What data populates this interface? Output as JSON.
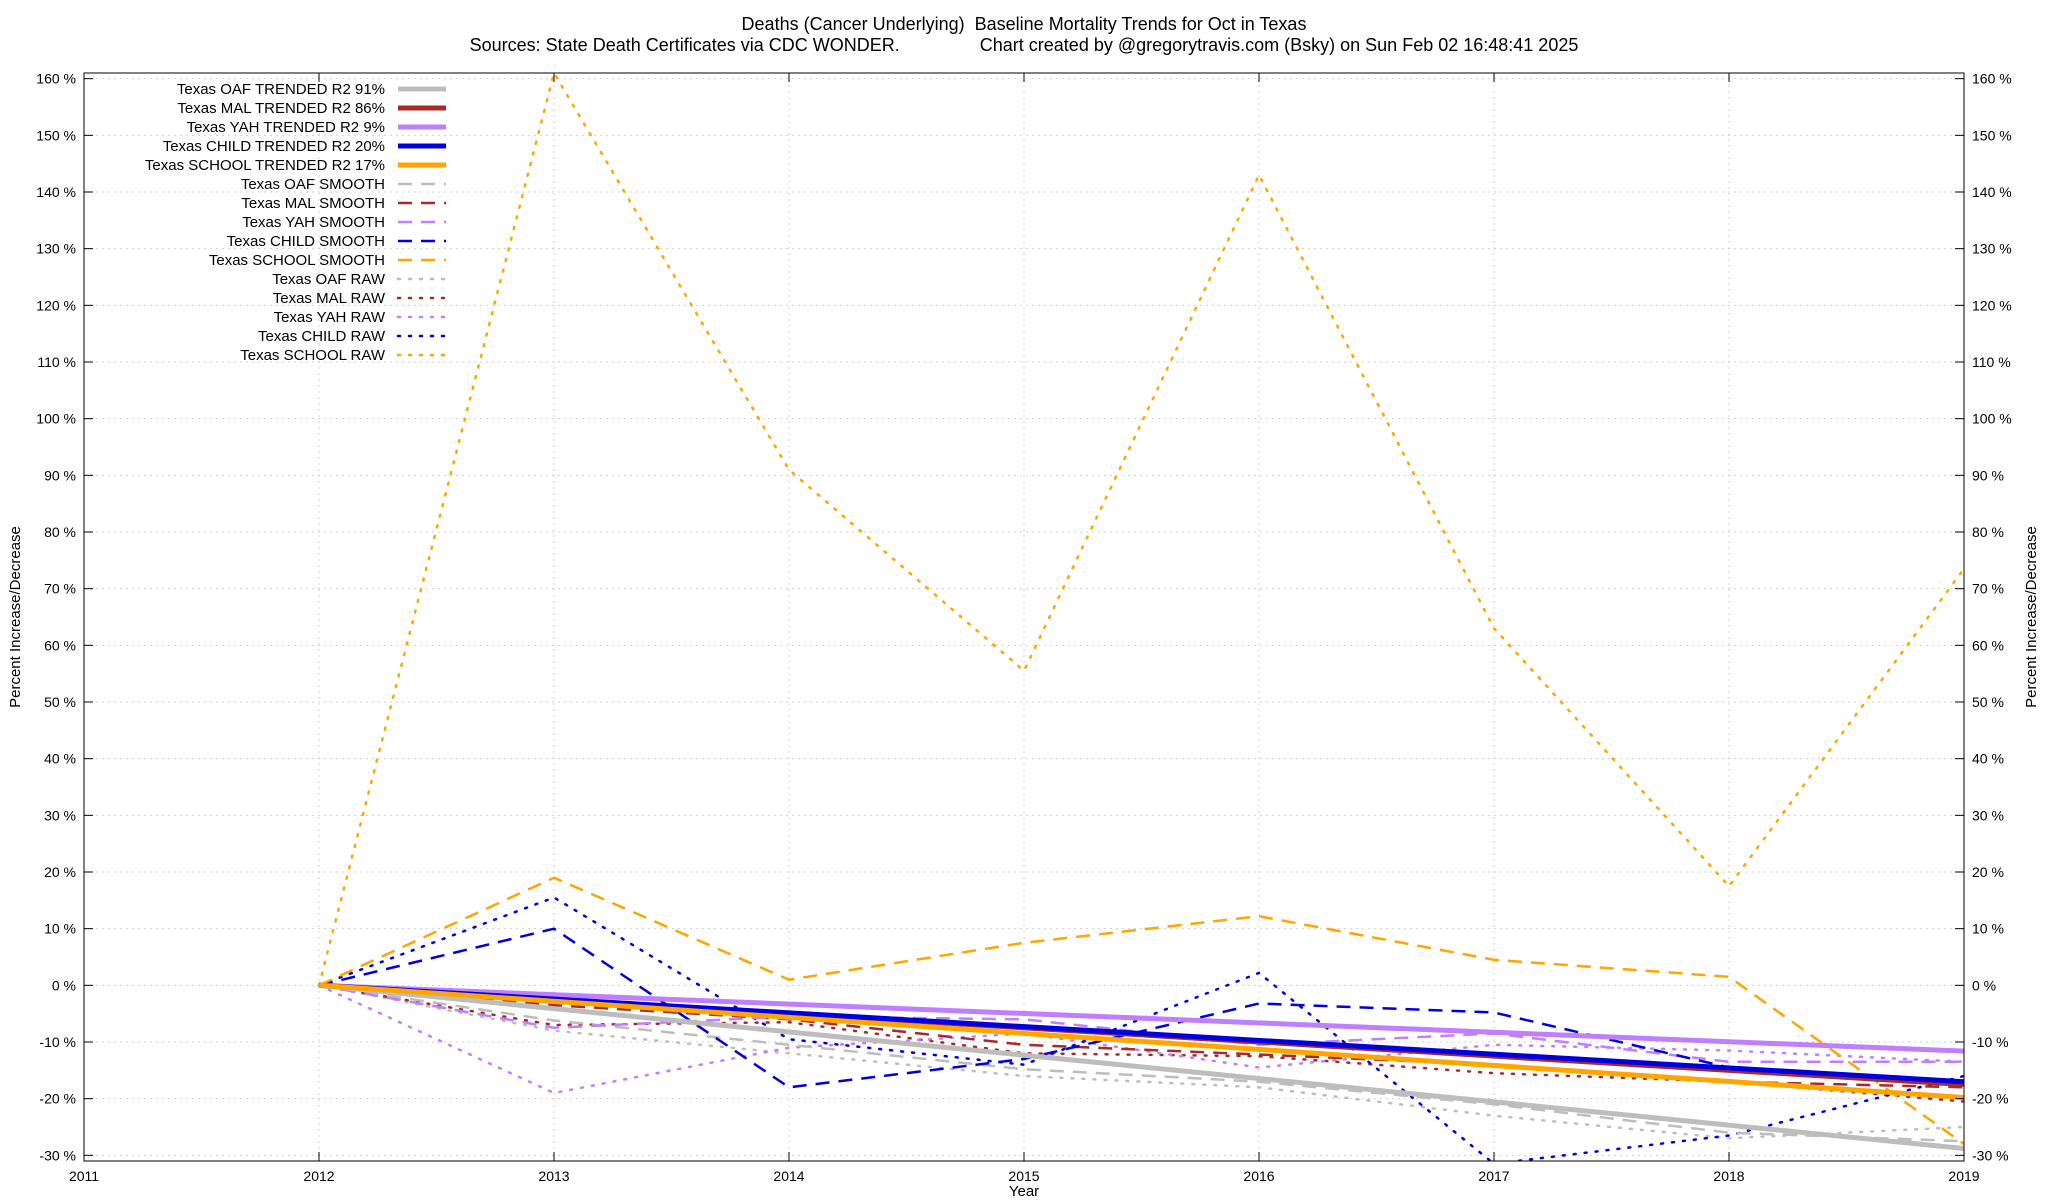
{
  "title": "Deaths (Cancer Underlying)  Baseline Mortality Trends for Oct in Texas",
  "subtitle": "Sources: State Death Certificates via CDC WONDER.                Chart created by @gregorytravis.com (Bsky) on Sun Feb 02 16:48:41 2025",
  "chart_data": {
    "type": "line",
    "xlabel": "Year",
    "ylabel": "Percent Increase/Decrease",
    "y2label": "Percent Increase/Decrease",
    "xlim": [
      2011,
      2019
    ],
    "ylim": [
      -31,
      161
    ],
    "x_ticks": [
      "2011",
      "2012",
      "2013",
      "2014",
      "2015",
      "2016",
      "2017",
      "2018",
      "2019"
    ],
    "y_ticks": [
      "160 %",
      "150 %",
      "140 %",
      "130 %",
      "120 %",
      "110 %",
      "100 %",
      "90 %",
      "80 %",
      "70 %",
      "60 %",
      "50 %",
      "40 %",
      "30 %",
      "20 %",
      "10 %",
      "0 %",
      "-10 %",
      "-20 %",
      "-30 %"
    ],
    "grid": true,
    "legend_position": "top-left",
    "series": [
      {
        "name": "Texas OAF TRENDED R2  91%",
        "style": "solid",
        "width": 5,
        "color": "#bdbdbd",
        "x": [
          2012,
          2019
        ],
        "values": [
          0,
          -28.8
        ]
      },
      {
        "name": "Texas MAL TRENDED R2  86%",
        "style": "solid",
        "width": 5,
        "color": "#a52a2a",
        "x": [
          2012,
          2019
        ],
        "values": [
          0,
          -17.5
        ]
      },
      {
        "name": "Texas YAH TRENDED R2  9%",
        "style": "solid",
        "width": 5,
        "color": "#bf7fff",
        "x": [
          2012,
          2019
        ],
        "values": [
          0,
          -11.6
        ]
      },
      {
        "name": "Texas CHILD TRENDED R2  20%",
        "style": "solid",
        "width": 5,
        "color": "#0000dd",
        "x": [
          2012,
          2019
        ],
        "values": [
          0,
          -17.0
        ]
      },
      {
        "name": "Texas SCHOOL TRENDED R2  17%",
        "style": "solid",
        "width": 5,
        "color": "#ffa500",
        "x": [
          2012,
          2019
        ],
        "values": [
          0,
          -19.8
        ]
      },
      {
        "name": "Texas OAF SMOOTH",
        "style": "dash",
        "width": 2.5,
        "color": "#bdbdbd",
        "x": [
          2012,
          2013,
          2014,
          2015,
          2016,
          2017,
          2018,
          2019
        ],
        "values": [
          0,
          -6.2,
          -10.5,
          -14.8,
          -17.0,
          -21.0,
          -26.0,
          -27.5
        ]
      },
      {
        "name": "Texas MAL SMOOTH",
        "style": "dash",
        "width": 2.5,
        "color": "#a52a2a",
        "x": [
          2012,
          2013,
          2014,
          2015,
          2016,
          2017,
          2018,
          2019
        ],
        "values": [
          0,
          -3.5,
          -6.0,
          -10.5,
          -12.2,
          -14.0,
          -17.0,
          -18.0
        ]
      },
      {
        "name": "Texas YAH SMOOTH",
        "style": "dash",
        "width": 2.5,
        "color": "#bf7fff",
        "x": [
          2012,
          2013,
          2014,
          2015,
          2016,
          2017,
          2018,
          2019
        ],
        "values": [
          0,
          -7.5,
          -5.5,
          -6.0,
          -10.5,
          -8.5,
          -13.5,
          -13.5
        ]
      },
      {
        "name": "Texas CHILD SMOOTH",
        "style": "dash",
        "width": 2.5,
        "color": "#0000dd",
        "x": [
          2012,
          2013,
          2014,
          2015,
          2016,
          2017,
          2018,
          2019
        ],
        "values": [
          0,
          10.0,
          -18.0,
          -13.0,
          -3.2,
          -4.8,
          -14.5,
          -17.5
        ]
      },
      {
        "name": "Texas SCHOOL SMOOTH",
        "style": "dash",
        "width": 2.5,
        "color": "#ffa500",
        "x": [
          2012,
          2013,
          2014,
          2015,
          2016,
          2017,
          2018,
          2019
        ],
        "values": [
          0,
          19.0,
          1.0,
          7.5,
          12.2,
          4.5,
          1.5,
          -28.0
        ]
      },
      {
        "name": "Texas OAF RAW",
        "style": "dot",
        "width": 2.5,
        "color": "#bdbdbd",
        "x": [
          2012,
          2013,
          2014,
          2015,
          2016,
          2017,
          2018,
          2019
        ],
        "values": [
          0,
          -8.0,
          -12.0,
          -16.0,
          -18.0,
          -23.0,
          -27.0,
          -25.0
        ]
      },
      {
        "name": "Texas MAL RAW",
        "style": "dot",
        "width": 2.5,
        "color": "#a52a2a",
        "x": [
          2012,
          2013,
          2014,
          2015,
          2016,
          2017,
          2018,
          2019
        ],
        "values": [
          0,
          -7.0,
          -6.5,
          -12.0,
          -12.5,
          -15.5,
          -17.0,
          -20.5
        ]
      },
      {
        "name": "Texas YAH RAW",
        "style": "dot",
        "width": 2.5,
        "color": "#bf7fff",
        "x": [
          2012,
          2013,
          2014,
          2015,
          2016,
          2017,
          2018,
          2019
        ],
        "values": [
          0,
          -19.0,
          -11.0,
          -8.5,
          -14.5,
          -10.5,
          -11.5,
          -13.5
        ]
      },
      {
        "name": "Texas CHILD RAW",
        "style": "dot",
        "width": 2.5,
        "color": "#0000dd",
        "x": [
          2012,
          2013,
          2014,
          2015,
          2016,
          2017,
          2018,
          2019
        ],
        "values": [
          0,
          15.5,
          -9.5,
          -14.0,
          2.2,
          -31.5,
          -26.5,
          -16.0
        ]
      },
      {
        "name": "Texas SCHOOL RAW",
        "style": "dot",
        "width": 2.5,
        "color": "#ffa500",
        "x": [
          2012,
          2013,
          2014,
          2015,
          2016,
          2017,
          2018,
          2019
        ],
        "values": [
          0,
          161.0,
          91.0,
          55.5,
          143.0,
          63.0,
          17.5,
          73.5
        ]
      }
    ]
  }
}
